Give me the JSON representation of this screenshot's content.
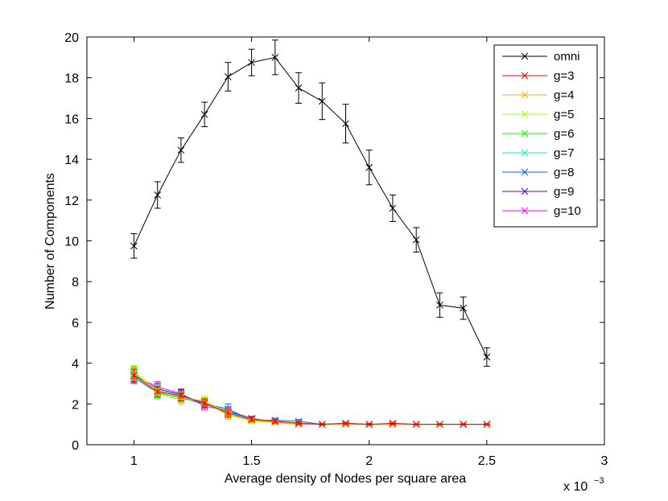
{
  "chart_data": {
    "type": "line",
    "title": "",
    "xlabel": "Average density of Nodes per square area",
    "ylabel": "Number of Components",
    "x_multiplier_label": "x 10",
    "x_multiplier_exponent": "−3",
    "xlim": [
      0.8,
      3.0
    ],
    "ylim": [
      0,
      20
    ],
    "xticks": [
      1,
      1.5,
      2,
      2.5,
      3
    ],
    "xtick_labels": [
      "1",
      "1.5",
      "2",
      "2.5",
      "3"
    ],
    "yticks": [
      0,
      2,
      4,
      6,
      8,
      10,
      12,
      14,
      16,
      18,
      20
    ],
    "ytick_labels": [
      "0",
      "2",
      "4",
      "6",
      "8",
      "10",
      "12",
      "14",
      "16",
      "18",
      "20"
    ],
    "grid": false,
    "legend_position": "top-right",
    "marker": "x",
    "x": [
      1.0,
      1.1,
      1.2,
      1.3,
      1.4,
      1.5,
      1.6,
      1.7,
      1.8,
      1.9,
      2.0,
      2.1,
      2.2,
      2.3,
      2.4,
      2.5
    ],
    "series": [
      {
        "name": "omni",
        "color": "#000000",
        "values": [
          9.75,
          12.25,
          14.45,
          16.2,
          18.05,
          18.75,
          19.0,
          17.5,
          16.85,
          15.75,
          13.6,
          11.6,
          10.05,
          6.85,
          6.7,
          4.3
        ],
        "errors": [
          0.6,
          0.65,
          0.6,
          0.6,
          0.7,
          0.65,
          0.85,
          0.75,
          0.9,
          0.95,
          0.85,
          0.65,
          0.6,
          0.6,
          0.55,
          0.45
        ]
      },
      {
        "name": "g=3",
        "color": "#ff0000",
        "values": [
          3.4,
          2.6,
          2.4,
          2.05,
          1.55,
          1.25,
          1.15,
          1.05,
          1.0,
          1.05,
          1.0,
          1.05,
          1.0,
          1.0,
          1.0,
          1.0
        ],
        "errors": [
          0.3,
          0.25,
          0.25,
          0.2,
          0.2,
          0.1,
          0.08,
          0.05,
          0.03,
          0.05,
          0.03,
          0.05,
          0.02,
          0.02,
          0.02,
          0.03
        ]
      },
      {
        "name": "g=4",
        "color": "#ffaa00",
        "values": [
          3.55,
          2.65,
          2.35,
          2.1,
          1.45,
          1.2,
          1.1,
          1.0,
          1.0,
          1.0,
          1.0,
          1.0,
          1.0,
          1.0,
          1.0,
          1.0
        ],
        "errors": [
          0.3,
          0.25,
          0.25,
          0.2,
          0.2,
          0.1,
          0.08,
          0.05,
          0.03,
          0.03,
          0.03,
          0.03,
          0.02,
          0.02,
          0.02,
          0.02
        ]
      },
      {
        "name": "g=5",
        "color": "#aaff00",
        "values": [
          3.6,
          2.5,
          2.2,
          2.2,
          1.5,
          1.15,
          1.1,
          1.05,
          1.0,
          1.0,
          1.0,
          1.0,
          1.0,
          1.0,
          1.0,
          1.0
        ],
        "errors": [
          0.3,
          0.25,
          0.25,
          0.2,
          0.2,
          0.1,
          0.08,
          0.05,
          0.03,
          0.03,
          0.03,
          0.03,
          0.02,
          0.02,
          0.02,
          0.02
        ]
      },
      {
        "name": "g=6",
        "color": "#00ff00",
        "values": [
          3.5,
          2.55,
          2.3,
          2.1,
          1.5,
          1.2,
          1.15,
          1.05,
          1.0,
          1.05,
          1.0,
          1.0,
          1.0,
          1.0,
          1.0,
          1.0
        ],
        "errors": [
          0.3,
          0.25,
          0.25,
          0.2,
          0.2,
          0.1,
          0.08,
          0.05,
          0.03,
          0.03,
          0.03,
          0.03,
          0.02,
          0.02,
          0.02,
          0.02
        ]
      },
      {
        "name": "g=7",
        "color": "#00ffaa",
        "values": [
          3.45,
          2.7,
          2.4,
          2.05,
          1.6,
          1.25,
          1.15,
          1.05,
          1.0,
          1.0,
          1.0,
          1.0,
          1.0,
          1.0,
          1.0,
          1.0
        ],
        "errors": [
          0.3,
          0.25,
          0.25,
          0.2,
          0.2,
          0.1,
          0.08,
          0.05,
          0.03,
          0.03,
          0.03,
          0.03,
          0.02,
          0.02,
          0.02,
          0.02
        ]
      },
      {
        "name": "g=8",
        "color": "#0066ff",
        "values": [
          3.3,
          2.55,
          2.3,
          2.0,
          1.75,
          1.2,
          1.2,
          1.15,
          1.0,
          1.0,
          1.0,
          1.0,
          1.0,
          1.0,
          1.0,
          1.0
        ],
        "errors": [
          0.3,
          0.25,
          0.25,
          0.2,
          0.25,
          0.1,
          0.1,
          0.08,
          0.03,
          0.03,
          0.03,
          0.03,
          0.02,
          0.02,
          0.02,
          0.02
        ]
      },
      {
        "name": "g=9",
        "color": "#5500ff",
        "values": [
          3.4,
          2.75,
          2.45,
          2.0,
          1.65,
          1.25,
          1.15,
          1.05,
          1.0,
          1.05,
          1.0,
          1.0,
          1.0,
          1.0,
          1.0,
          1.0
        ],
        "errors": [
          0.3,
          0.25,
          0.25,
          0.2,
          0.2,
          0.1,
          0.08,
          0.05,
          0.03,
          0.05,
          0.03,
          0.03,
          0.02,
          0.02,
          0.02,
          0.02
        ]
      },
      {
        "name": "g=10",
        "color": "#ff00ff",
        "values": [
          3.35,
          2.85,
          2.5,
          1.9,
          1.65,
          1.3,
          1.1,
          1.0,
          1.0,
          1.0,
          1.0,
          1.0,
          1.0,
          1.0,
          1.0,
          1.0
        ],
        "errors": [
          0.3,
          0.25,
          0.25,
          0.2,
          0.2,
          0.1,
          0.08,
          0.05,
          0.03,
          0.03,
          0.03,
          0.03,
          0.02,
          0.02,
          0.02,
          0.02
        ]
      }
    ]
  }
}
